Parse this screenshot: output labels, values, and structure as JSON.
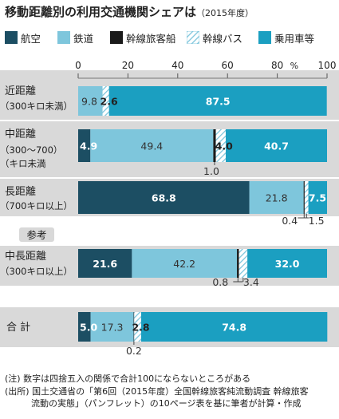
{
  "title": "移動距離別の利用交通機関シェアは",
  "subtitle": "（2015年度）",
  "colors": {
    "air": "#1c4e63",
    "rail": "#7ec6dc",
    "ship": "#1a1a1a",
    "bus_hatch_bg": "#ffffff",
    "bus_hatch_line": "#7ec6dc",
    "car": "#1b9fc1",
    "band": "#d9d9d9"
  },
  "chart_data": {
    "type": "bar",
    "orientation": "horizontal",
    "stacked": true,
    "xlim": [
      0,
      100
    ],
    "x_unit": "%",
    "x_ticks": [
      "0",
      "20",
      "40",
      "60",
      "80",
      "100"
    ],
    "legend_position": "top",
    "series": [
      {
        "key": "air",
        "name": "航空"
      },
      {
        "key": "rail",
        "name": "鉄道"
      },
      {
        "key": "ship",
        "name": "幹線旅客船"
      },
      {
        "key": "bus",
        "name": "幹線バス"
      },
      {
        "key": "car",
        "name": "乗用車等"
      }
    ],
    "reference_label": "参考",
    "rows": [
      {
        "label": [
          "近距離",
          "（300キロ未満）"
        ],
        "values": {
          "air": 0,
          "rail": 9.8,
          "ship": 0,
          "bus": 2.6,
          "car": 87.5
        },
        "labels": {
          "rail": "9.8",
          "bus": "2.6",
          "car": "87.5"
        }
      },
      {
        "label": [
          "中距離",
          "（300〜700）",
          "（キロ未満",
          ""
        ],
        "values": {
          "air": 4.9,
          "rail": 49.4,
          "ship": 1.0,
          "bus": 4.0,
          "car": 40.7
        },
        "labels": {
          "air": "4.9",
          "rail": "49.4",
          "ship": "1.0",
          "bus": "4.0",
          "car": "40.7"
        }
      },
      {
        "label": [
          "長距離",
          "（700キロ以上）"
        ],
        "values": {
          "air": 68.8,
          "rail": 21.8,
          "ship": 0.4,
          "bus": 1.5,
          "car": 7.5
        },
        "labels": {
          "air": "68.8",
          "rail": "21.8",
          "ship": "0.4",
          "bus": "1.5",
          "car": "7.5"
        }
      },
      {
        "label": [
          "中長距離",
          "（300キロ以上）"
        ],
        "values": {
          "air": 21.6,
          "rail": 42.2,
          "ship": 0.8,
          "bus": 3.4,
          "car": 32.0
        },
        "labels": {
          "air": "21.6",
          "rail": "42.2",
          "ship": "0.8",
          "bus": "3.4",
          "car": "32.0"
        }
      },
      {
        "label": [
          "合 計"
        ],
        "values": {
          "air": 5.0,
          "rail": 17.3,
          "ship": 0.2,
          "bus": 2.8,
          "car": 74.8
        },
        "labels": {
          "air": "5.0",
          "rail": "17.3",
          "ship": "0.2",
          "bus": "2.8",
          "car": "74.8"
        }
      }
    ]
  },
  "notes": [
    "(注) 数字は四捨五入の関係で合計100にならないところがある",
    "(出所) 国土交通省の「第6回（2015年度）全国幹線旅客純流動調査 幹線旅客",
    "　　　流動の実態」（パンフレット）の10ページ表を基に筆者が計算・作成"
  ]
}
